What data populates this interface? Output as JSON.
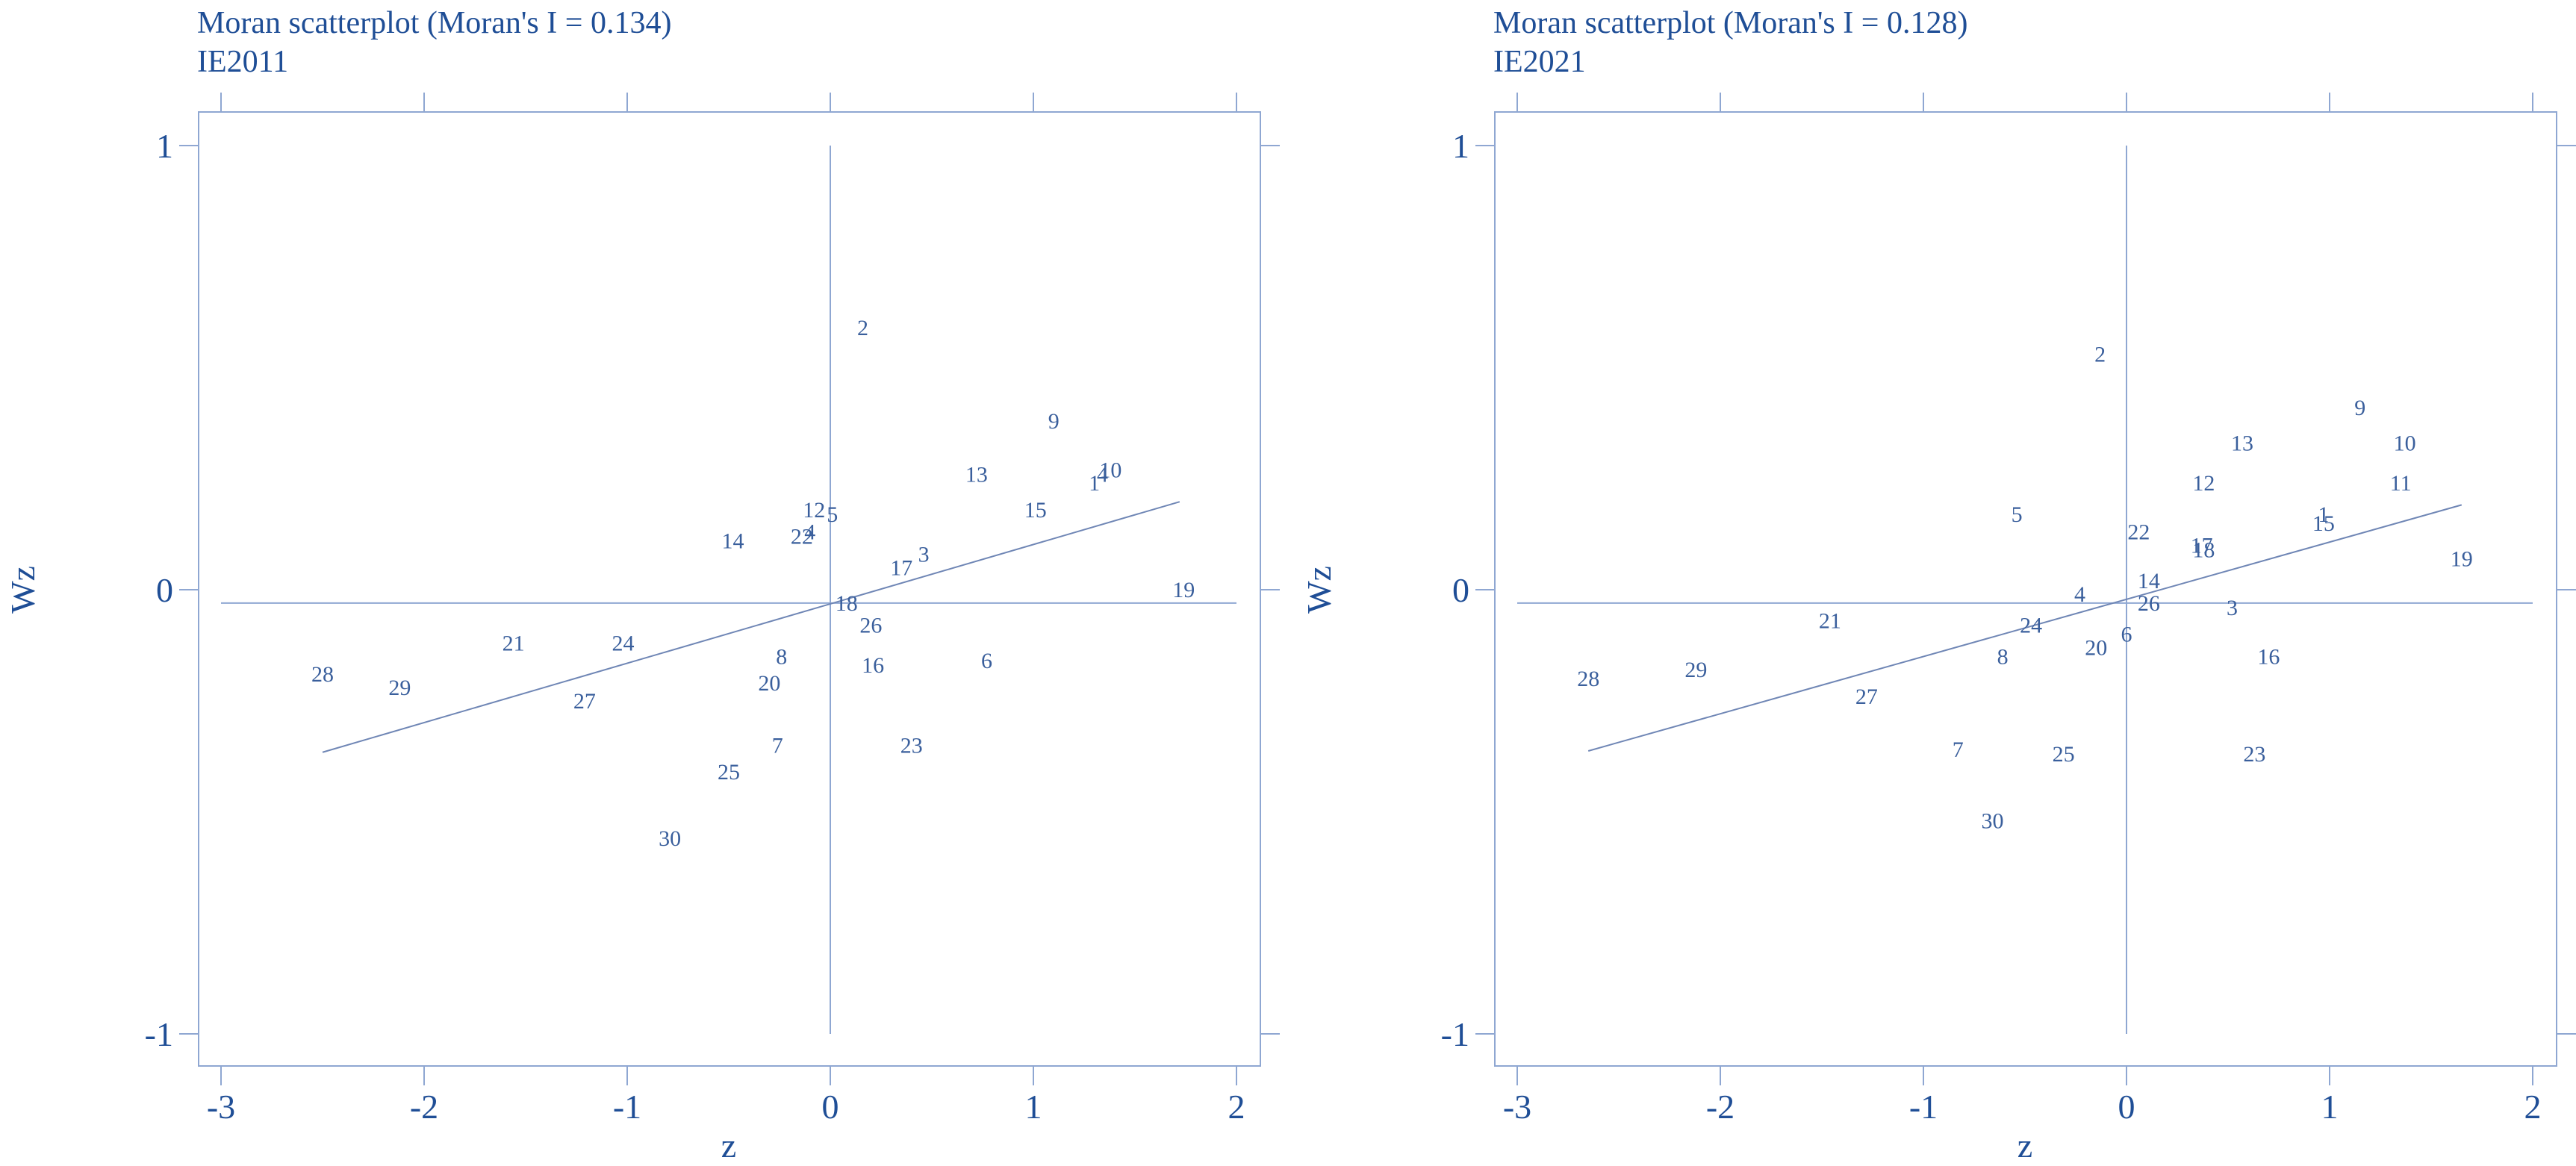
{
  "colors": {
    "text": "#1f4e96",
    "axis": "#8fa7d2",
    "marker_label": "#3a5f9c",
    "fit_line": "#6f86b5"
  },
  "chart_data": [
    {
      "type": "scatter",
      "title": "Moran scatterplot (Moran's I = 0.134)",
      "subtitle": "IE2011",
      "xlabel": "z",
      "ylabel": "Wz",
      "xlim": [
        -3,
        2
      ],
      "ylim": [
        -1,
        1
      ],
      "xticks": [
        "-3",
        "-2",
        "-1",
        "0",
        "1",
        "2"
      ],
      "yticks": [
        "1",
        "0",
        "-1"
      ],
      "grid": false,
      "fit_line": {
        "x": [
          -2.5,
          1.72
        ],
        "y": [
          -0.366,
          0.198
        ]
      },
      "points": [
        {
          "label": "2",
          "x": 0.16,
          "y": 0.59
        },
        {
          "label": "9",
          "x": 1.1,
          "y": 0.38
        },
        {
          "label": "13",
          "x": 0.72,
          "y": 0.26
        },
        {
          "label": "1",
          "x": 1.3,
          "y": 0.24
        },
        {
          "label": "4",
          "x": 1.34,
          "y": 0.26
        },
        {
          "label": "10",
          "x": 1.38,
          "y": 0.27
        },
        {
          "label": "15",
          "x": 1.01,
          "y": 0.18
        },
        {
          "label": "12",
          "x": -0.08,
          "y": 0.18
        },
        {
          "label": "5",
          "x": 0.01,
          "y": 0.17
        },
        {
          "label": "22",
          "x": -0.14,
          "y": 0.12
        },
        {
          "label": "4",
          "x": -0.1,
          "y": 0.13
        },
        {
          "label": "14",
          "x": -0.48,
          "y": 0.11
        },
        {
          "label": "3",
          "x": 0.46,
          "y": 0.08
        },
        {
          "label": "17",
          "x": 0.35,
          "y": 0.05
        },
        {
          "label": "19",
          "x": 1.74,
          "y": 0.0
        },
        {
          "label": "18",
          "x": 0.08,
          "y": -0.03
        },
        {
          "label": "26",
          "x": 0.2,
          "y": -0.08
        },
        {
          "label": "21",
          "x": -1.56,
          "y": -0.12
        },
        {
          "label": "24",
          "x": -1.02,
          "y": -0.12
        },
        {
          "label": "8",
          "x": -0.24,
          "y": -0.15
        },
        {
          "label": "6",
          "x": 0.77,
          "y": -0.16
        },
        {
          "label": "16",
          "x": 0.21,
          "y": -0.17
        },
        {
          "label": "28",
          "x": -2.5,
          "y": -0.19
        },
        {
          "label": "29",
          "x": -2.12,
          "y": -0.22
        },
        {
          "label": "20",
          "x": -0.3,
          "y": -0.21
        },
        {
          "label": "27",
          "x": -1.21,
          "y": -0.25
        },
        {
          "label": "7",
          "x": -0.26,
          "y": -0.35
        },
        {
          "label": "23",
          "x": 0.4,
          "y": -0.35
        },
        {
          "label": "25",
          "x": -0.5,
          "y": -0.41
        },
        {
          "label": "30",
          "x": -0.79,
          "y": -0.56
        }
      ]
    },
    {
      "type": "scatter",
      "title": "Moran scatterplot (Moran's I = 0.128)",
      "subtitle": "IE2021",
      "xlabel": "z",
      "ylabel": "Wz",
      "xlim": [
        -3,
        2
      ],
      "ylim": [
        -1,
        1
      ],
      "xticks": [
        "-3",
        "-2",
        "-1",
        "0",
        "1",
        "2"
      ],
      "yticks": [
        "1",
        "0",
        "-1"
      ],
      "grid": false,
      "fit_line": {
        "x": [
          -2.65,
          1.65
        ],
        "y": [
          -0.363,
          0.191
        ]
      },
      "points": [
        {
          "label": "2",
          "x": -0.13,
          "y": 0.53
        },
        {
          "label": "9",
          "x": 1.15,
          "y": 0.41
        },
        {
          "label": "13",
          "x": 0.57,
          "y": 0.33
        },
        {
          "label": "10",
          "x": 1.37,
          "y": 0.33
        },
        {
          "label": "12",
          "x": 0.38,
          "y": 0.24
        },
        {
          "label": "11",
          "x": 1.35,
          "y": 0.24
        },
        {
          "label": "5",
          "x": -0.54,
          "y": 0.17
        },
        {
          "label": "1",
          "x": 0.97,
          "y": 0.17
        },
        {
          "label": "15",
          "x": 0.97,
          "y": 0.15
        },
        {
          "label": "22",
          "x": 0.06,
          "y": 0.13
        },
        {
          "label": "17",
          "x": 0.37,
          "y": 0.1
        },
        {
          "label": "18",
          "x": 0.38,
          "y": 0.09
        },
        {
          "label": "19",
          "x": 1.65,
          "y": 0.07
        },
        {
          "label": "14",
          "x": 0.11,
          "y": 0.02
        },
        {
          "label": "4",
          "x": -0.23,
          "y": -0.01
        },
        {
          "label": "26",
          "x": 0.11,
          "y": -0.03
        },
        {
          "label": "3",
          "x": 0.52,
          "y": -0.04
        },
        {
          "label": "21",
          "x": -1.46,
          "y": -0.07
        },
        {
          "label": "24",
          "x": -0.47,
          "y": -0.08
        },
        {
          "label": "6",
          "x": 0.0,
          "y": -0.1
        },
        {
          "label": "20",
          "x": -0.15,
          "y": -0.13
        },
        {
          "label": "8",
          "x": -0.61,
          "y": -0.15
        },
        {
          "label": "16",
          "x": 0.7,
          "y": -0.15
        },
        {
          "label": "28",
          "x": -2.65,
          "y": -0.2
        },
        {
          "label": "29",
          "x": -2.12,
          "y": -0.18
        },
        {
          "label": "27",
          "x": -1.28,
          "y": -0.24
        },
        {
          "label": "7",
          "x": -0.83,
          "y": -0.36
        },
        {
          "label": "25",
          "x": -0.31,
          "y": -0.37
        },
        {
          "label": "23",
          "x": 0.63,
          "y": -0.37
        },
        {
          "label": "30",
          "x": -0.66,
          "y": -0.52
        }
      ]
    }
  ]
}
